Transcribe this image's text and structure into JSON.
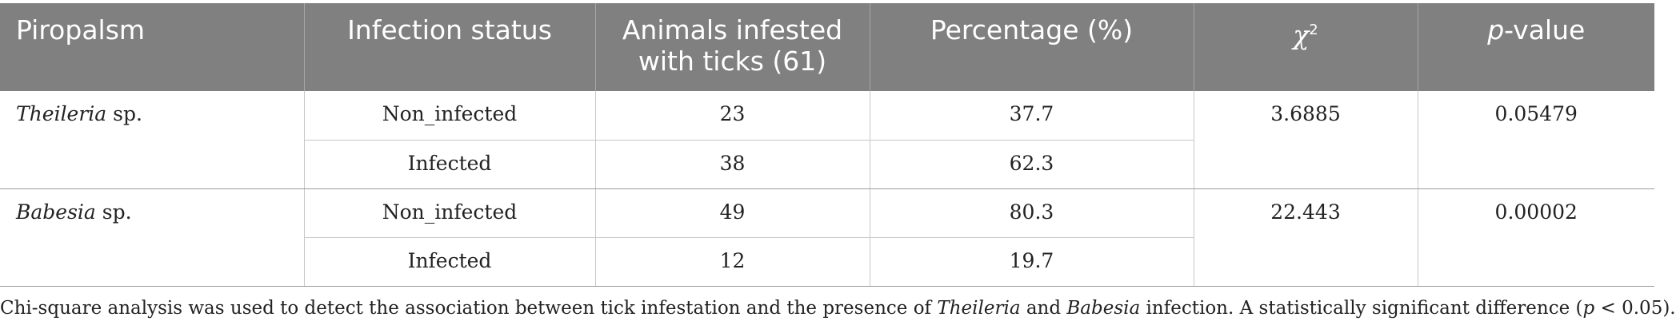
{
  "headers": {
    "piropalsm": "Piropalsm",
    "status": "Infection status",
    "animals_line1": "Animals infested",
    "animals_line2": "with ticks (61)",
    "percentage": "Percentage (%)",
    "chi_symbol": "χ",
    "chi_sup": "2",
    "p_italic": "p",
    "p_rest": "-value"
  },
  "rows": [
    {
      "genus": "Theileria",
      "sp": " sp.",
      "chi": "3.6885",
      "p": "0.05479",
      "status": [
        {
          "label": "Non_infected",
          "count": "23",
          "percent": "37.7"
        },
        {
          "label": "Infected",
          "count": "38",
          "percent": "62.3"
        }
      ]
    },
    {
      "genus": "Babesia",
      "sp": " sp.",
      "chi": "22.443",
      "p": "0.00002",
      "status": [
        {
          "label": "Non_infected",
          "count": "49",
          "percent": "80.3"
        },
        {
          "label": "Infected",
          "count": "12",
          "percent": "19.7"
        }
      ]
    }
  ],
  "footnote": {
    "part1": "Chi-square analysis was used to detect the association between tick infestation and the presence of ",
    "genus1": "Theileria",
    "part2": " and ",
    "genus2": "Babesia",
    "part3": " infection. A statistically significant difference (",
    "p_italic": "p",
    "part4": " < 0.05)."
  }
}
